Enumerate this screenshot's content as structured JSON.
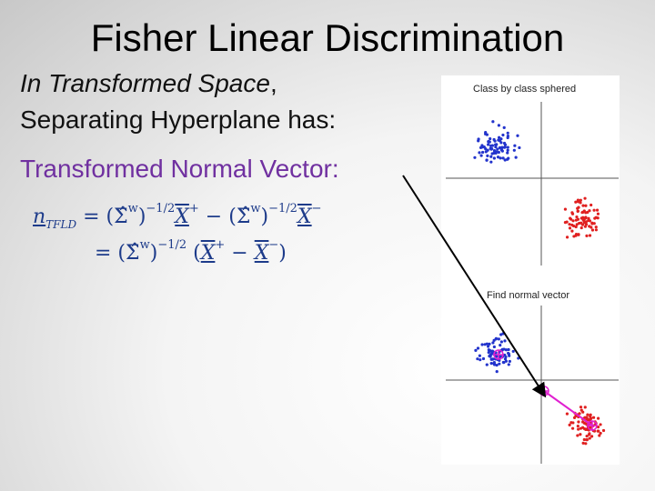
{
  "slide": {
    "title": "Fisher Linear Discrimination",
    "line1_italic": "In Transformed Space",
    "line1_rest": ",",
    "line2": "Separating Hyperplane has:",
    "line3": "Transformed Normal Vector:"
  },
  "formula": {
    "line1": [
      "n",
      "TFLD",
      "= (",
      "Σ̂",
      "w",
      ")",
      "−1/2",
      "X",
      "+",
      " − (",
      "Σ̂",
      "w",
      ")",
      "−1/2",
      "X",
      "−"
    ],
    "line2": [
      "= (",
      "Σ̂",
      "w",
      ")",
      "−1/2",
      " (",
      "X",
      "+",
      " − ",
      "X",
      "−",
      ")"
    ]
  },
  "figure": {
    "panel1_title": "Class by class sphered",
    "panel2_title": "Find normal vector"
  }
}
